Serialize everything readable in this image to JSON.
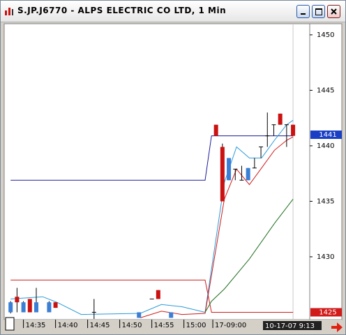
{
  "window": {
    "title": "S.JP.J6770 - ALPS ELECTRIC CO LTD, 1 Min"
  },
  "chart_data": {
    "type": "candlestick",
    "up_color": "#3a7fd5",
    "down_color": "#cc1111",
    "xlim": [
      -1,
      46.6
    ],
    "ylim": [
      1424.4,
      1451
    ],
    "yticks": [
      1430,
      1435,
      1440,
      1445,
      1450
    ],
    "xticks": [
      {
        "value": 2,
        "label": "14:35"
      },
      {
        "value": 7,
        "label": "14:40"
      },
      {
        "value": 12,
        "label": "14:45"
      },
      {
        "value": 17,
        "label": "14:50"
      },
      {
        "value": 22,
        "label": "14:55"
      },
      {
        "value": 27,
        "label": "15:00"
      },
      {
        "value": 31.5,
        "label": "17-09:00"
      }
    ],
    "cursor": {
      "x": 44,
      "label": "10-17-07  9:13"
    },
    "markers": [
      {
        "value": 1441,
        "color": "#1a3fc4"
      },
      {
        "value": 1425,
        "color": "#d11a1a"
      }
    ],
    "candles": {
      "x": [
        0,
        1,
        2,
        3,
        4,
        6,
        7,
        13,
        20,
        22,
        23,
        25,
        32,
        33,
        34,
        35,
        36,
        37,
        38,
        39,
        40,
        41,
        42,
        43,
        44
      ],
      "open": [
        1425.0,
        1426.4,
        1425.0,
        1426.2,
        1425.0,
        1425.0,
        1425.9,
        1425.0,
        1424.5,
        1426.2,
        1427.0,
        1424.5,
        1441.9,
        1439.9,
        1436.9,
        1437.9,
        1436.9,
        1436.9,
        1438.0,
        1439.9,
        1440.9,
        1441.9,
        1442.9,
        1441.9,
        1441.9
      ],
      "high": [
        1426.0,
        1427.2,
        1426.0,
        1426.2,
        1427.2,
        1426.0,
        1425.9,
        1426.2,
        1425.0,
        1426.2,
        1427.0,
        1425.0,
        1441.9,
        1440.2,
        1438.9,
        1437.9,
        1438.2,
        1438.0,
        1438.9,
        1439.9,
        1443.0,
        1441.9,
        1442.9,
        1441.9,
        1441.9
      ],
      "low": [
        1424.9,
        1425.0,
        1425.0,
        1425.0,
        1425.0,
        1425.0,
        1425.4,
        1424.4,
        1424.5,
        1426.2,
        1426.2,
        1424.5,
        1440.9,
        1435.0,
        1436.9,
        1436.9,
        1436.9,
        1436.9,
        1438.0,
        1438.9,
        1439.9,
        1440.9,
        1441.9,
        1439.9,
        1440.9
      ],
      "close": [
        1425.9,
        1425.9,
        1425.9,
        1425.0,
        1425.9,
        1425.9,
        1425.4,
        1425.0,
        1425.0,
        1426.2,
        1426.2,
        1425.0,
        1440.9,
        1435.0,
        1438.9,
        1437.9,
        1436.9,
        1438.0,
        1438.0,
        1439.9,
        1440.9,
        1441.9,
        1441.9,
        1441.9,
        1440.9
      ]
    },
    "series": [
      {
        "color": "#1a1a9a",
        "x": [
          0,
          30.3,
          31.3,
          44
        ],
        "values": [
          1436.9,
          1436.9,
          1440.9,
          1440.9
        ]
      },
      {
        "color": "#d11a1a",
        "x": [
          0,
          30.3,
          31.3,
          44
        ],
        "values": [
          1427.9,
          1427.9,
          1425.0,
          1425.0
        ]
      },
      {
        "color": "#2a9ad8",
        "x": [
          0,
          5,
          7.2,
          11,
          20.2,
          23.5,
          26.7,
          30.3,
          33.3,
          35.2,
          37.2,
          39.1,
          41.1,
          43,
          44
        ],
        "values": [
          1426.2,
          1426.4,
          1425.9,
          1424.8,
          1424.9,
          1425.7,
          1425.5,
          1425.0,
          1436.7,
          1439.9,
          1438.9,
          1438.9,
          1440.5,
          1441.9,
          1442.3
        ]
      },
      {
        "color": "#d11a1a",
        "x": [
          20.2,
          23.5,
          26.7,
          30.3,
          33.3,
          35.2,
          37.2,
          39.1,
          41.1,
          43,
          44
        ],
        "values": [
          1424.5,
          1425.1,
          1424.8,
          1424.9,
          1435.2,
          1437.9,
          1436.5,
          1438.0,
          1439.6,
          1440.5,
          1440.8
        ]
      },
      {
        "color": "#1f6e1f",
        "x": [
          30.3,
          31.3,
          33.3,
          37.2,
          41.1,
          44
        ],
        "values": [
          1425.0,
          1426.0,
          1427.1,
          1429.8,
          1433.0,
          1435.2
        ]
      }
    ]
  }
}
